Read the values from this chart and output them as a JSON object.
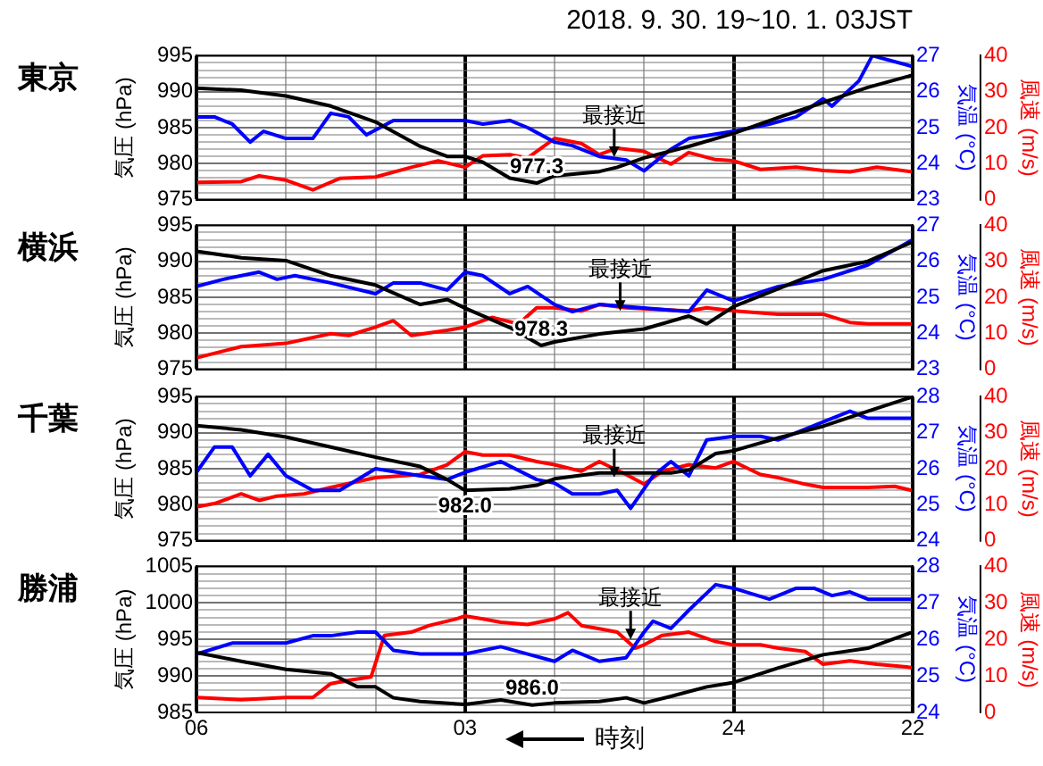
{
  "chart_data": [
    {
      "type": "line",
      "title": "東京",
      "ylabel": "気圧 (hPa)",
      "y2label": "気温 (°C)",
      "y3label": "風速 (m/s)",
      "xlim": [
        "2018-10-01T06:00",
        "2018-09-30T22:00"
      ],
      "xticks": [
        {
          "value": "2018-10-01T06:00",
          "label": null
        },
        {
          "value": "2018-10-01T05:00",
          "label": null
        },
        {
          "value": "2018-10-01T04:00",
          "label": null
        },
        {
          "value": "2018-10-01T03:00",
          "label": null
        },
        {
          "value": "2018-10-01T02:00",
          "label": null
        },
        {
          "value": "2018-10-01T01:00",
          "label": null
        },
        {
          "value": "2018-10-01T00:00",
          "label": null
        },
        {
          "value": "2018-09-30T23:00",
          "label": null
        },
        {
          "value": "2018-09-30T22:00",
          "label": null
        }
      ],
      "ylim": [
        975,
        995
      ],
      "yticks": [
        975,
        {
          "value": 976,
          "label": null
        },
        {
          "value": 977,
          "label": null
        },
        {
          "value": 978,
          "label": null
        },
        {
          "value": 979,
          "label": null
        },
        980,
        {
          "value": 981,
          "label": null
        },
        {
          "value": 982,
          "label": null
        },
        {
          "value": 983,
          "label": null
        },
        {
          "value": 984,
          "label": null
        },
        985,
        {
          "value": 986,
          "label": null
        },
        {
          "value": 987,
          "label": null
        },
        {
          "value": 988,
          "label": null
        },
        {
          "value": 989,
          "label": null
        },
        990,
        {
          "value": 991,
          "label": null
        },
        {
          "value": 992,
          "label": null
        },
        {
          "value": 993,
          "label": null
        },
        {
          "value": 994,
          "label": null
        },
        995
      ],
      "y2lim": [
        23,
        27
      ],
      "y2ticks": [
        23,
        24,
        25,
        26,
        27
      ],
      "y3lim": [
        0,
        40
      ],
      "y3ticks": [
        0,
        10,
        20,
        30,
        40
      ],
      "grid": true,
      "marker": "none",
      "tick_labels": "y",
      "annotations": [
        "2018. 9. 30. 19~10. 1. 03JST",
        {
          "text": "最接近",
          "x": "2018-10-01T01:20",
          "y": 980.9
        },
        {
          "text": "977.3",
          "x": "2018-10-01T02:12",
          "y": 977.3
        }
      ],
      "series": [
        {
          "color": "#000000",
          "x": [
            "2018-10-01T06:00",
            "2018-10-01T05:30",
            "2018-10-01T05:00",
            "2018-10-01T04:30",
            "2018-10-01T04:00",
            "2018-10-01T03:30",
            "2018-10-01T03:12",
            "2018-10-01T03:00",
            "2018-10-01T02:48",
            "2018-10-01T02:30",
            "2018-10-01T02:12",
            "2018-10-01T02:00",
            "2018-10-01T01:30",
            "2018-10-01T01:18",
            "2018-10-01T01:00",
            "2018-10-01T00:30",
            "2018-10-01T00:00",
            "2018-09-30T23:30",
            "2018-09-30T23:00",
            "2018-09-30T22:30",
            "2018-09-30T22:00"
          ],
          "values": [
            990.5,
            990.2,
            989.4,
            988.0,
            985.8,
            982.4,
            981.0,
            981.0,
            980.2,
            978.0,
            977.3,
            978.3,
            978.9,
            979.5,
            980.8,
            982.4,
            984.2,
            986.4,
            988.5,
            990.6,
            992.3
          ]
        },
        {
          "color": "#0000ff",
          "axis": "y2",
          "x": [
            "2018-10-01T06:00",
            "2018-10-01T05:48",
            "2018-10-01T05:36",
            "2018-10-01T05:24",
            "2018-10-01T05:15",
            "2018-10-01T05:00",
            "2018-10-01T04:42",
            "2018-10-01T04:30",
            "2018-10-01T04:18",
            "2018-10-01T04:06",
            "2018-10-01T03:48",
            "2018-10-01T03:30",
            "2018-10-01T03:00",
            "2018-10-01T02:48",
            "2018-10-01T02:30",
            "2018-10-01T02:18",
            "2018-10-01T02:00",
            "2018-10-01T01:48",
            "2018-10-01T01:30",
            "2018-10-01T01:12",
            "2018-10-01T01:00",
            "2018-10-01T00:42",
            "2018-10-01T00:30",
            "2018-10-01T00:00",
            "2018-09-30T23:36",
            "2018-09-30T23:18",
            "2018-09-30T23:00",
            "2018-09-30T22:54",
            "2018-09-30T22:36",
            "2018-09-30T22:27",
            "2018-09-30T22:00"
          ],
          "values": [
            25.3,
            25.3,
            25.1,
            24.6,
            24.9,
            24.7,
            24.7,
            25.4,
            25.3,
            24.8,
            25.2,
            25.2,
            25.2,
            25.1,
            25.2,
            25.0,
            24.6,
            24.5,
            24.2,
            24.1,
            23.8,
            24.4,
            24.7,
            24.9,
            25.1,
            25.3,
            25.8,
            25.6,
            26.3,
            27.0,
            26.7
          ]
        },
        {
          "color": "#ff0000",
          "axis": "y3",
          "x": [
            "2018-10-01T06:00",
            "2018-10-01T05:30",
            "2018-10-01T05:18",
            "2018-10-01T05:00",
            "2018-10-01T04:42",
            "2018-10-01T04:24",
            "2018-10-01T04:00",
            "2018-10-01T03:36",
            "2018-10-01T03:18",
            "2018-10-01T03:00",
            "2018-10-01T02:48",
            "2018-10-01T02:30",
            "2018-10-01T02:18",
            "2018-10-01T02:00",
            "2018-10-01T01:42",
            "2018-10-01T01:30",
            "2018-10-01T01:18",
            "2018-10-01T01:00",
            "2018-10-01T00:42",
            "2018-10-01T00:30",
            "2018-10-01T00:12",
            "2018-10-01T00:00",
            "2018-09-30T23:42",
            "2018-09-30T23:18",
            "2018-09-30T23:00",
            "2018-09-30T22:42",
            "2018-09-30T22:24",
            "2018-09-30T22:00"
          ],
          "values": [
            4.8,
            5,
            6.6,
            5.4,
            2.7,
            5.9,
            6.3,
            9,
            10.8,
            9,
            12.2,
            12.5,
            11.6,
            17,
            15.6,
            12.5,
            14.3,
            13.4,
            9.9,
            13.1,
            11.1,
            10.8,
            8.4,
            9,
            8.1,
            7.7,
            9,
            7.7
          ]
        }
      ]
    },
    {
      "type": "line",
      "title": "横浜",
      "ylabel": "気圧 (hPa)",
      "y2label": "気温 (°C)",
      "y3label": "風速 (m/s)",
      "xlim": [
        "2018-10-01T06:00",
        "2018-09-30T22:00"
      ],
      "xticks": [
        {
          "value": "2018-10-01T06:00",
          "label": null
        },
        {
          "value": "2018-10-01T05:00",
          "label": null
        },
        {
          "value": "2018-10-01T04:00",
          "label": null
        },
        {
          "value": "2018-10-01T03:00",
          "label": null
        },
        {
          "value": "2018-10-01T02:00",
          "label": null
        },
        {
          "value": "2018-10-01T01:00",
          "label": null
        },
        {
          "value": "2018-10-01T00:00",
          "label": null
        },
        {
          "value": "2018-09-30T23:00",
          "label": null
        },
        {
          "value": "2018-09-30T22:00",
          "label": null
        }
      ],
      "ylim": [
        975,
        995
      ],
      "yticks": [
        975,
        {
          "value": 976,
          "label": null
        },
        {
          "value": 977,
          "label": null
        },
        {
          "value": 978,
          "label": null
        },
        {
          "value": 979,
          "label": null
        },
        980,
        {
          "value": 981,
          "label": null
        },
        {
          "value": 982,
          "label": null
        },
        {
          "value": 983,
          "label": null
        },
        {
          "value": 984,
          "label": null
        },
        985,
        {
          "value": 986,
          "label": null
        },
        {
          "value": 987,
          "label": null
        },
        {
          "value": 988,
          "label": null
        },
        {
          "value": 989,
          "label": null
        },
        990,
        {
          "value": 991,
          "label": null
        },
        {
          "value": 992,
          "label": null
        },
        {
          "value": 993,
          "label": null
        },
        {
          "value": 994,
          "label": null
        },
        995
      ],
      "y2lim": [
        23,
        27
      ],
      "y2ticks": [
        23,
        24,
        25,
        26,
        27
      ],
      "y3lim": [
        0,
        40
      ],
      "y3ticks": [
        0,
        10,
        20,
        30,
        40
      ],
      "grid": true,
      "marker": "none",
      "tick_labels": "y",
      "annotations": [
        {
          "text": "最接近",
          "x": "2018-10-01T01:16",
          "y": 983.1
        },
        {
          "text": "978.3",
          "x": "2018-10-01T02:09",
          "y": 978.3
        }
      ],
      "series": [
        {
          "color": "#000000",
          "x": [
            "2018-10-01T06:00",
            "2018-10-01T05:30",
            "2018-10-01T05:00",
            "2018-10-01T04:30",
            "2018-10-01T04:00",
            "2018-10-01T03:30",
            "2018-10-01T03:12",
            "2018-10-01T03:00",
            "2018-10-01T02:30",
            "2018-10-01T02:09",
            "2018-10-01T02:00",
            "2018-10-01T01:30",
            "2018-10-01T01:00",
            "2018-10-01T00:30",
            "2018-10-01T00:18",
            "2018-10-01T00:00",
            "2018-09-30T23:30",
            "2018-09-30T23:00",
            "2018-09-30T22:30",
            "2018-09-30T22:00"
          ],
          "values": [
            991.4,
            990.5,
            990.1,
            988.0,
            986.7,
            984.0,
            984.7,
            983.5,
            980.8,
            978.3,
            978.8,
            979.9,
            980.6,
            982.4,
            981.3,
            983.7,
            986.2,
            988.7,
            990.0,
            992.7
          ]
        },
        {
          "color": "#0000ff",
          "axis": "y2",
          "x": [
            "2018-10-01T06:00",
            "2018-10-01T05:42",
            "2018-10-01T05:18",
            "2018-10-01T05:06",
            "2018-10-01T04:54",
            "2018-10-01T04:30",
            "2018-10-01T04:00",
            "2018-10-01T03:48",
            "2018-10-01T03:30",
            "2018-10-01T03:12",
            "2018-10-01T03:00",
            "2018-10-01T02:48",
            "2018-10-01T02:30",
            "2018-10-01T02:18",
            "2018-10-01T02:00",
            "2018-10-01T01:48",
            "2018-10-01T01:30",
            "2018-10-01T01:00",
            "2018-10-01T00:30",
            "2018-10-01T00:18",
            "2018-10-01T00:00",
            "2018-09-30T23:30",
            "2018-09-30T23:00",
            "2018-09-30T22:30",
            "2018-09-30T22:00"
          ],
          "values": [
            25.3,
            25.5,
            25.7,
            25.5,
            25.6,
            25.4,
            25.1,
            25.4,
            25.4,
            25.2,
            25.7,
            25.6,
            25.1,
            25.3,
            24.8,
            24.6,
            24.8,
            24.7,
            24.6,
            25.2,
            24.9,
            25.3,
            25.5,
            25.9,
            26.6
          ]
        },
        {
          "color": "#ff0000",
          "axis": "y3",
          "x": [
            "2018-10-01T06:00",
            "2018-10-01T05:30",
            "2018-10-01T05:00",
            "2018-10-01T04:30",
            "2018-10-01T04:18",
            "2018-10-01T04:00",
            "2018-10-01T03:48",
            "2018-10-01T03:36",
            "2018-10-01T03:12",
            "2018-10-01T03:00",
            "2018-10-01T02:42",
            "2018-10-01T02:24",
            "2018-10-01T02:12",
            "2018-10-01T02:00",
            "2018-10-01T01:42",
            "2018-10-01T01:30",
            "2018-10-01T01:12",
            "2018-10-01T00:48",
            "2018-10-01T00:30",
            "2018-10-01T00:18",
            "2018-10-01T00:00",
            "2018-09-30T23:30",
            "2018-09-30T23:00",
            "2018-09-30T22:42",
            "2018-09-30T22:30",
            "2018-09-30T22:00"
          ],
          "values": [
            3.2,
            6.3,
            7.2,
            9.9,
            9.4,
            11.7,
            13.5,
            9.4,
            10.8,
            11.7,
            14.4,
            12.6,
            17.1,
            17.1,
            16.2,
            18,
            17.1,
            16.6,
            16.2,
            17.1,
            16.2,
            15.3,
            15.3,
            13,
            12.6,
            12.6
          ]
        }
      ]
    },
    {
      "type": "line",
      "title": "千葉",
      "ylabel": "気圧 (hPa)",
      "y2label": "気温 (°C)",
      "y3label": "風速 (m/s)",
      "xlim": [
        "2018-10-01T06:00",
        "2018-09-30T22:00"
      ],
      "xticks": [
        {
          "value": "2018-10-01T06:00",
          "label": null
        },
        {
          "value": "2018-10-01T05:00",
          "label": null
        },
        {
          "value": "2018-10-01T04:00",
          "label": null
        },
        {
          "value": "2018-10-01T03:00",
          "label": null
        },
        {
          "value": "2018-10-01T02:00",
          "label": null
        },
        {
          "value": "2018-10-01T01:00",
          "label": null
        },
        {
          "value": "2018-10-01T00:00",
          "label": null
        },
        {
          "value": "2018-09-30T23:00",
          "label": null
        },
        {
          "value": "2018-09-30T22:00",
          "label": null
        }
      ],
      "ylim": [
        975,
        995
      ],
      "yticks": [
        975,
        {
          "value": 976,
          "label": null
        },
        {
          "value": 977,
          "label": null
        },
        {
          "value": 978,
          "label": null
        },
        {
          "value": 979,
          "label": null
        },
        980,
        {
          "value": 981,
          "label": null
        },
        {
          "value": 982,
          "label": null
        },
        {
          "value": 983,
          "label": null
        },
        {
          "value": 984,
          "label": null
        },
        985,
        {
          "value": 986,
          "label": null
        },
        {
          "value": 987,
          "label": null
        },
        {
          "value": 988,
          "label": null
        },
        {
          "value": 989,
          "label": null
        },
        990,
        {
          "value": 991,
          "label": null
        },
        {
          "value": 992,
          "label": null
        },
        {
          "value": 993,
          "label": null
        },
        {
          "value": 994,
          "label": null
        },
        995
      ],
      "y2lim": [
        24,
        28
      ],
      "y2ticks": [
        24,
        25,
        26,
        27,
        28
      ],
      "y3lim": [
        0,
        40
      ],
      "y3ticks": [
        0,
        10,
        20,
        30,
        40
      ],
      "grid": true,
      "marker": "none",
      "tick_labels": "y",
      "annotations": [
        {
          "text": "最接近",
          "x": "2018-10-01T01:20",
          "y": 983.8
        },
        {
          "text": "982.0",
          "x": "2018-10-01T03:00",
          "y": 982.0
        }
      ],
      "series": [
        {
          "color": "#000000",
          "x": [
            "2018-10-01T06:00",
            "2018-10-01T05:30",
            "2018-10-01T05:00",
            "2018-10-01T04:30",
            "2018-10-01T04:00",
            "2018-10-01T03:30",
            "2018-10-01T03:12",
            "2018-10-01T03:00",
            "2018-10-01T02:30",
            "2018-10-01T02:12",
            "2018-10-01T02:00",
            "2018-10-01T01:30",
            "2018-10-01T01:00",
            "2018-10-01T00:42",
            "2018-10-01T00:30",
            "2018-10-01T00:12",
            "2018-10-01T00:00",
            "2018-09-30T23:30",
            "2018-09-30T23:00",
            "2018-09-30T22:30",
            "2018-09-30T22:00"
          ],
          "values": [
            991.0,
            990.4,
            989.4,
            988.0,
            986.6,
            985.3,
            983.5,
            982.0,
            982.2,
            982.7,
            983.6,
            984.4,
            984.4,
            984.4,
            984.8,
            987.1,
            987.5,
            989.3,
            990.9,
            993.0,
            995.0
          ]
        },
        {
          "color": "#0000ff",
          "axis": "y2",
          "x": [
            "2018-10-01T06:00",
            "2018-10-01T05:48",
            "2018-10-01T05:36",
            "2018-10-01T05:24",
            "2018-10-01T05:12",
            "2018-10-01T05:00",
            "2018-10-01T04:42",
            "2018-10-01T04:24",
            "2018-10-01T04:00",
            "2018-10-01T03:30",
            "2018-10-01T03:12",
            "2018-10-01T03:00",
            "2018-10-01T02:36",
            "2018-10-01T02:12",
            "2018-10-01T02:00",
            "2018-10-01T01:48",
            "2018-10-01T01:30",
            "2018-10-01T01:18",
            "2018-10-01T01:09",
            "2018-10-01T00:54",
            "2018-10-01T00:42",
            "2018-10-01T00:30",
            "2018-10-01T00:18",
            "2018-10-01T00:00",
            "2018-09-30T23:42",
            "2018-09-30T23:30",
            "2018-09-30T23:00",
            "2018-09-30T22:42",
            "2018-09-30T22:30",
            "2018-09-30T22:12",
            "2018-09-30T22:00"
          ],
          "values": [
            25.9,
            26.6,
            26.6,
            25.8,
            26.4,
            25.8,
            25.4,
            25.4,
            26.0,
            25.8,
            25.7,
            25.9,
            26.2,
            25.7,
            25.6,
            25.3,
            25.3,
            25.4,
            24.9,
            25.8,
            26.2,
            25.8,
            26.8,
            26.9,
            26.9,
            26.8,
            27.3,
            27.6,
            27.4,
            27.4,
            27.4
          ]
        },
        {
          "color": "#ff0000",
          "axis": "y3",
          "x": [
            "2018-10-01T06:00",
            "2018-10-01T05:48",
            "2018-10-01T05:30",
            "2018-10-01T05:18",
            "2018-10-01T05:06",
            "2018-10-01T04:48",
            "2018-10-01T04:30",
            "2018-10-01T04:00",
            "2018-10-01T03:30",
            "2018-10-01T03:12",
            "2018-10-01T03:00",
            "2018-10-01T02:48",
            "2018-10-01T02:30",
            "2018-10-01T02:12",
            "2018-10-01T02:00",
            "2018-10-01T01:42",
            "2018-10-01T01:30",
            "2018-10-01T01:12",
            "2018-10-01T01:00",
            "2018-10-01T00:48",
            "2018-10-01T00:30",
            "2018-10-01T00:12",
            "2018-10-01T00:00",
            "2018-09-30T23:42",
            "2018-09-30T23:30",
            "2018-09-30T23:12",
            "2018-09-30T23:00",
            "2018-09-30T22:30",
            "2018-09-30T22:12",
            "2018-09-30T22:00"
          ],
          "values": [
            9.4,
            10.3,
            13,
            11.2,
            12.4,
            13,
            14.8,
            17.5,
            18.4,
            21.1,
            24.7,
            23.8,
            23.8,
            22,
            21.1,
            19.3,
            22,
            18.4,
            15.7,
            19.3,
            21.1,
            20.2,
            22,
            18.4,
            17.5,
            15.7,
            14.8,
            14.8,
            15.1,
            13.9
          ]
        }
      ]
    },
    {
      "type": "line",
      "title": "勝浦",
      "xlabel": "時刻",
      "ylabel": "気圧 (hPa)",
      "y2label": "気温 (°C)",
      "y3label": "風速 (m/s)",
      "xlim": [
        "2018-10-01T06:00",
        "2018-09-30T22:00"
      ],
      "xticks": [
        {
          "value": "2018-10-01T06:00",
          "label": "06"
        },
        {
          "value": "2018-10-01T05:00",
          "label": null
        },
        {
          "value": "2018-10-01T04:00",
          "label": null
        },
        {
          "value": "2018-10-01T03:00",
          "label": "03"
        },
        {
          "value": "2018-10-01T02:00",
          "label": null
        },
        {
          "value": "2018-10-01T01:00",
          "label": null
        },
        {
          "value": "2018-10-01T00:00",
          "label": "24"
        },
        {
          "value": "2018-09-30T23:00",
          "label": null
        },
        {
          "value": "2018-09-30T22:00",
          "label": "22"
        }
      ],
      "ylim": [
        985,
        1005
      ],
      "yticks": [
        985,
        {
          "value": 986,
          "label": null
        },
        {
          "value": 987,
          "label": null
        },
        {
          "value": 988,
          "label": null
        },
        {
          "value": 989,
          "label": null
        },
        990,
        {
          "value": 991,
          "label": null
        },
        {
          "value": 992,
          "label": null
        },
        {
          "value": 993,
          "label": null
        },
        {
          "value": 994,
          "label": null
        },
        995,
        {
          "value": 996,
          "label": null
        },
        {
          "value": 997,
          "label": null
        },
        {
          "value": 998,
          "label": null
        },
        {
          "value": 999,
          "label": null
        },
        1000,
        {
          "value": 1001,
          "label": null
        },
        {
          "value": 1002,
          "label": null
        },
        {
          "value": 1003,
          "label": null
        },
        {
          "value": 1004,
          "label": null
        },
        1005
      ],
      "y2lim": [
        24,
        28
      ],
      "y2ticks": [
        24,
        25,
        26,
        27,
        28
      ],
      "y3lim": [
        0,
        40
      ],
      "y3ticks": [
        0,
        10,
        20,
        30,
        40
      ],
      "grid": true,
      "marker": "none",
      "annotations": [
        {
          "text": "最接近",
          "x": "2018-10-01T01:09",
          "y": 995.0
        },
        {
          "text": "986.0",
          "x": "2018-10-01T02:15",
          "y": 986.0
        }
      ],
      "series": [
        {
          "color": "#000000",
          "x": [
            "2018-10-01T06:00",
            "2018-10-01T05:30",
            "2018-10-01T05:00",
            "2018-10-01T04:30",
            "2018-10-01T04:12",
            "2018-10-01T04:00",
            "2018-10-01T03:48",
            "2018-10-01T03:30",
            "2018-10-01T03:00",
            "2018-10-01T02:36",
            "2018-10-01T02:15",
            "2018-10-01T02:00",
            "2018-10-01T01:30",
            "2018-10-01T01:12",
            "2018-10-01T01:00",
            "2018-10-01T00:42",
            "2018-10-01T00:18",
            "2018-10-01T00:00",
            "2018-09-30T23:30",
            "2018-09-30T23:00",
            "2018-09-30T22:30",
            "2018-09-30T22:00"
          ],
          "values": [
            993.2,
            992.0,
            990.9,
            990.3,
            988.5,
            988.5,
            987.0,
            986.5,
            986.1,
            986.7,
            986.0,
            986.3,
            986.5,
            987.0,
            986.3,
            987.2,
            988.5,
            989.1,
            991.1,
            992.9,
            993.8,
            996.0
          ]
        },
        {
          "color": "#0000ff",
          "axis": "y2",
          "x": [
            "2018-10-01T06:00",
            "2018-10-01T05:36",
            "2018-10-01T05:18",
            "2018-10-01T05:00",
            "2018-10-01T04:42",
            "2018-10-01T04:30",
            "2018-10-01T04:12",
            "2018-10-01T04:00",
            "2018-10-01T03:48",
            "2018-10-01T03:30",
            "2018-10-01T03:00",
            "2018-10-01T02:36",
            "2018-10-01T02:18",
            "2018-10-01T02:00",
            "2018-10-01T01:48",
            "2018-10-01T01:30",
            "2018-10-01T01:12",
            "2018-10-01T01:00",
            "2018-10-01T00:54",
            "2018-10-01T00:42",
            "2018-10-01T00:30",
            "2018-10-01T00:12",
            "2018-10-01T00:00",
            "2018-09-30T23:36",
            "2018-09-30T23:18",
            "2018-09-30T23:06",
            "2018-09-30T22:54",
            "2018-09-30T22:42",
            "2018-09-30T22:30",
            "2018-09-30T22:00"
          ],
          "values": [
            25.6,
            25.9,
            25.9,
            25.9,
            26.1,
            26.1,
            26.2,
            26.2,
            25.7,
            25.6,
            25.6,
            25.8,
            25.6,
            25.4,
            25.7,
            25.4,
            25.5,
            26.2,
            26.5,
            26.3,
            26.8,
            27.5,
            27.4,
            27.1,
            27.4,
            27.4,
            27.2,
            27.3,
            27.1,
            27.1
          ]
        },
        {
          "color": "#ff0000",
          "axis": "y3",
          "x": [
            "2018-10-01T06:00",
            "2018-10-01T05:30",
            "2018-10-01T05:00",
            "2018-10-01T04:42",
            "2018-10-01T04:30",
            "2018-10-01T04:18",
            "2018-10-01T04:03",
            "2018-10-01T03:54",
            "2018-10-01T03:36",
            "2018-10-01T03:24",
            "2018-10-01T03:06",
            "2018-10-01T03:00",
            "2018-10-01T02:48",
            "2018-10-01T02:36",
            "2018-10-01T02:18",
            "2018-10-01T02:00",
            "2018-10-01T01:51",
            "2018-10-01T01:42",
            "2018-10-01T01:30",
            "2018-10-01T01:18",
            "2018-10-01T01:06",
            "2018-10-01T01:00",
            "2018-10-01T00:48",
            "2018-10-01T00:30",
            "2018-10-01T00:12",
            "2018-10-01T00:00",
            "2018-09-30T23:42",
            "2018-09-30T23:30",
            "2018-09-30T23:12",
            "2018-09-30T23:00",
            "2018-09-30T22:42",
            "2018-09-30T22:24",
            "2018-09-30T22:00"
          ],
          "values": [
            4.1,
            3.5,
            4.1,
            4.1,
            7.9,
            8.8,
            9.7,
            21.1,
            22,
            23.8,
            25.6,
            26.4,
            25.6,
            24.7,
            24.1,
            25.6,
            27.3,
            23.8,
            22.9,
            22,
            17.6,
            18.5,
            21.1,
            22,
            19.4,
            18.5,
            18.5,
            17.6,
            16.7,
            13.2,
            14.1,
            13.2,
            12.3
          ]
        }
      ]
    }
  ]
}
